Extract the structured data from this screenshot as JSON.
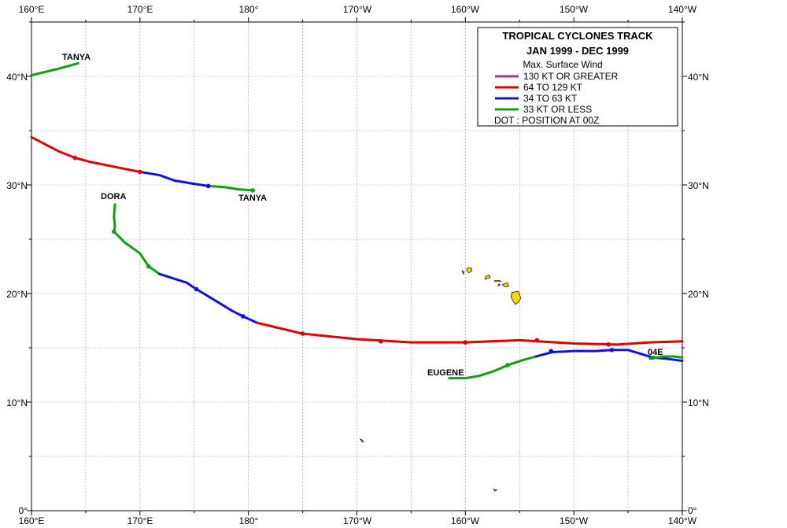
{
  "legend": {
    "title_line1": "TROPICAL  CYCLONES TRACK",
    "title_line2": "JAN 1999  -  DEC 1999",
    "subtitle": "Max. Surface Wind",
    "entries": [
      {
        "label": "130 KT OR GREATER",
        "color": "#a0407a"
      },
      {
        "label": "64 TO 129 KT",
        "color": "#e00000"
      },
      {
        "label": "34 TO 63 KT",
        "color": "#1010e0"
      },
      {
        "label": "33 KT OR LESS",
        "color": "#10a010"
      }
    ],
    "dot_note": "DOT : POSITION AT 00Z"
  },
  "axes": {
    "x_ticks_top": [
      "160°E",
      "170°E",
      "180°",
      "170°W",
      "160°W",
      "150°W",
      "140°W"
    ],
    "x_ticks_bottom": [
      "160°E",
      "170°E",
      "180°",
      "170°W",
      "160°W",
      "150°W",
      "140°W"
    ],
    "y_ticks_left": [
      "40°N",
      "30°N",
      "20°N",
      "10°N",
      "0°"
    ],
    "y_ticks_right": [
      "40°N",
      "30°N",
      "20°N",
      "10°N",
      "0°"
    ],
    "lon_range": [
      160,
      220
    ],
    "lat_range": [
      0,
      45
    ],
    "grid": true
  },
  "storm_labels": {
    "tanya_north": "TANYA",
    "tanya_south": "TANYA",
    "dora": "DORA",
    "eugene": "EUGENE",
    "04e": "04E"
  },
  "map_data": {
    "tracks": [
      {
        "name": "TANYA",
        "segments": [
          {
            "intensity": "33 KT OR LESS",
            "points": [
              [
                160.0,
                40.1
              ],
              [
                162.5,
                40.7
              ],
              [
                164.3,
                41.2
              ]
            ]
          }
        ],
        "dots": []
      },
      {
        "name": "TANYA",
        "segments": [
          {
            "intensity": "64 TO 129 KT",
            "points": [
              [
                160.0,
                34.4
              ],
              [
                162.5,
                33.1
              ],
              [
                164.0,
                32.5
              ],
              [
                165.5,
                32.1
              ],
              [
                168.0,
                31.6
              ],
              [
                170.0,
                31.2
              ]
            ]
          },
          {
            "intensity": "34 TO 63 KT",
            "points": [
              [
                170.0,
                31.2
              ],
              [
                171.8,
                30.9
              ],
              [
                173.2,
                30.4
              ],
              [
                175.0,
                30.1
              ],
              [
                176.3,
                29.9
              ]
            ]
          },
          {
            "intensity": "33 KT OR LESS",
            "points": [
              [
                176.3,
                29.9
              ],
              [
                177.8,
                29.8
              ],
              [
                179.0,
                29.6
              ],
              [
                180.4,
                29.5
              ]
            ]
          }
        ],
        "dots": [
          [
            164.0,
            32.5
          ],
          [
            170.0,
            31.2
          ],
          [
            176.3,
            29.9
          ],
          [
            180.4,
            29.5
          ]
        ]
      },
      {
        "name": "DORA",
        "segments": [
          {
            "intensity": "33 KT OR LESS",
            "points": [
              [
                167.7,
                28.2
              ],
              [
                167.6,
                27.1
              ],
              [
                167.7,
                26.2
              ],
              [
                167.6,
                25.7
              ],
              [
                168.6,
                24.7
              ],
              [
                170.0,
                23.7
              ],
              [
                170.8,
                22.5
              ],
              [
                171.8,
                21.8
              ]
            ]
          },
          {
            "intensity": "34 TO 63 KT",
            "points": [
              [
                171.8,
                21.8
              ],
              [
                174.3,
                21.0
              ],
              [
                175.2,
                20.4
              ],
              [
                177.2,
                19.2
              ],
              [
                178.5,
                18.4
              ],
              [
                179.5,
                17.9
              ],
              [
                180.8,
                17.3
              ]
            ]
          },
          {
            "intensity": "64 TO 129 KT",
            "points": [
              [
                180.8,
                17.3
              ],
              [
                185.0,
                16.3
              ],
              [
                190.0,
                15.8
              ],
              [
                195.0,
                15.5
              ],
              [
                200.0,
                15.5
              ],
              [
                205.0,
                15.7
              ],
              [
                210.0,
                15.4
              ],
              [
                214.0,
                15.3
              ],
              [
                217.0,
                15.5
              ],
              [
                220.0,
                15.6
              ]
            ]
          }
        ],
        "dots": [
          [
            167.6,
            25.7
          ],
          [
            170.8,
            22.5
          ],
          [
            175.2,
            20.4
          ],
          [
            179.5,
            17.9
          ],
          [
            185.0,
            16.3
          ],
          [
            192.2,
            15.6
          ],
          [
            200.0,
            15.5
          ],
          [
            206.6,
            15.7
          ],
          [
            213.2,
            15.3
          ]
        ]
      },
      {
        "name": "EUGENE",
        "segments": [
          {
            "intensity": "33 KT OR LESS",
            "points": [
              [
                198.5,
                12.2
              ],
              [
                200.0,
                12.2
              ],
              [
                201.2,
                12.4
              ],
              [
                202.5,
                12.8
              ],
              [
                203.9,
                13.4
              ],
              [
                205.4,
                13.9
              ],
              [
                206.5,
                14.2
              ]
            ]
          },
          {
            "intensity": "34 TO 63 KT",
            "points": [
              [
                206.5,
                14.2
              ],
              [
                208.0,
                14.6
              ],
              [
                210.0,
                14.7
              ],
              [
                212.0,
                14.7
              ],
              [
                213.5,
                14.8
              ],
              [
                215.0,
                14.8
              ],
              [
                216.0,
                14.5
              ],
              [
                217.3,
                14.1
              ],
              [
                218.5,
                14.0
              ],
              [
                220.0,
                13.8
              ]
            ]
          }
        ],
        "dots": [
          [
            203.9,
            13.4
          ],
          [
            207.9,
            14.7
          ],
          [
            213.5,
            14.8
          ]
        ]
      },
      {
        "name": "04E",
        "segments": [
          {
            "intensity": "33 KT OR LESS",
            "points": [
              [
                217.0,
                14.0
              ],
              [
                218.3,
                14.2
              ],
              [
                219.2,
                14.2
              ],
              [
                220.0,
                14.1
              ]
            ]
          }
        ],
        "dots": [
          [
            217.3,
            14.1
          ]
        ]
      }
    ],
    "islands": [
      {
        "name": "Kauai",
        "points": [
          [
            200.3,
            21.9
          ],
          [
            200.6,
            22.1
          ],
          [
            200.6,
            22.3
          ],
          [
            200.3,
            22.4
          ],
          [
            200.1,
            22.2
          ]
        ]
      },
      {
        "name": "Niihau",
        "points": [
          [
            199.8,
            21.8
          ],
          [
            199.9,
            22.0
          ],
          [
            199.7,
            22.1
          ]
        ]
      },
      {
        "name": "Oahu",
        "points": [
          [
            201.8,
            21.3
          ],
          [
            202.1,
            21.4
          ],
          [
            202.3,
            21.5
          ],
          [
            202.2,
            21.7
          ],
          [
            201.9,
            21.6
          ]
        ]
      },
      {
        "name": "Molokai",
        "points": [
          [
            202.7,
            21.1
          ],
          [
            203.3,
            21.1
          ],
          [
            203.2,
            21.2
          ],
          [
            202.7,
            21.2
          ]
        ]
      },
      {
        "name": "Maui",
        "points": [
          [
            203.4,
            20.8
          ],
          [
            203.7,
            20.6
          ],
          [
            204.0,
            20.7
          ],
          [
            203.9,
            21.0
          ],
          [
            203.6,
            20.9
          ]
        ]
      },
      {
        "name": "Lanai",
        "points": [
          [
            203.0,
            20.7
          ],
          [
            203.2,
            20.8
          ],
          [
            203.1,
            20.9
          ]
        ]
      },
      {
        "name": "Hawaii",
        "points": [
          [
            204.3,
            20.1
          ],
          [
            204.9,
            20.2
          ],
          [
            205.1,
            19.6
          ],
          [
            205.0,
            19.3
          ],
          [
            204.6,
            19.0
          ],
          [
            204.4,
            19.3
          ],
          [
            204.2,
            19.7
          ]
        ]
      },
      {
        "name": "Johnston",
        "points": [
          [
            190.3,
            6.6
          ],
          [
            190.5,
            6.5
          ],
          [
            190.6,
            6.4
          ],
          [
            190.5,
            6.3
          ]
        ]
      },
      {
        "name": "Palmyra",
        "points": [
          [
            202.6,
            2.0
          ],
          [
            202.9,
            1.9
          ],
          [
            202.7,
            1.8
          ]
        ]
      }
    ]
  }
}
